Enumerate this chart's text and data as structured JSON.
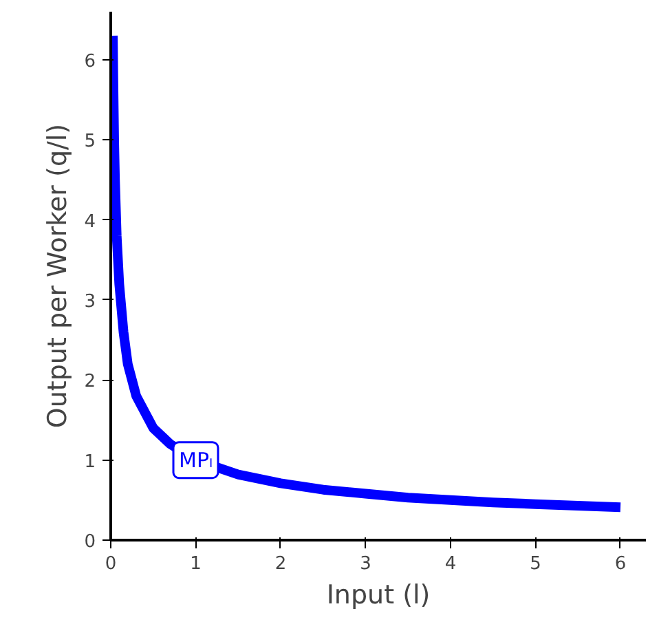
{
  "chart_data": {
    "type": "line",
    "xlabel": "Input (l)",
    "ylabel": "Output per Worker (q/l)",
    "x": [
      0.025,
      0.03,
      0.04,
      0.05,
      0.07,
      0.1,
      0.15,
      0.2,
      0.3,
      0.4,
      0.5,
      0.7,
      1,
      1.5,
      2,
      2.5,
      3,
      3.5,
      4,
      4.5,
      5,
      5.5,
      6
    ],
    "series": [
      {
        "color": "#0000ff",
        "values": [
          6.3,
          5.8,
          5.0,
          4.5,
          3.8,
          3.2,
          2.6,
          2.2,
          1.8,
          1.6,
          1.4,
          1.2,
          1.0,
          0.82,
          0.71,
          0.63,
          0.58,
          0.53,
          0.5,
          0.47,
          0.45,
          0.43,
          0.41
        ]
      }
    ],
    "xlim": [
      0,
      6.3
    ],
    "ylim": [
      0,
      6.6
    ],
    "xticks": [
      0,
      1,
      2,
      3,
      4,
      5,
      6
    ],
    "yticks": [
      0,
      1,
      2,
      3,
      4,
      5,
      6
    ],
    "grid": false,
    "annotations": [
      {
        "text": "MPₗ",
        "x": 1,
        "y": 1
      }
    ]
  }
}
